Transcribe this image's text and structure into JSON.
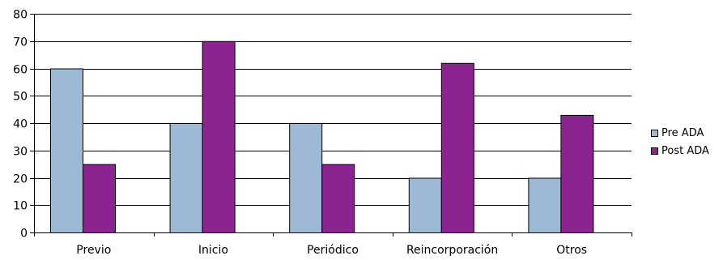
{
  "chart_data": {
    "type": "bar",
    "categories": [
      "Previo",
      "Inicio",
      "Periódico",
      "Reincorporación",
      "Otros"
    ],
    "series": [
      {
        "name": "Pre ADA",
        "values": [
          60,
          40,
          40,
          20,
          20
        ],
        "color": "#9DB9D5"
      },
      {
        "name": "Post ADA",
        "values": [
          25,
          70,
          25,
          62,
          43
        ],
        "color": "#8B2391"
      }
    ],
    "title": "",
    "xlabel": "",
    "ylabel": "",
    "ylim": [
      0,
      80
    ],
    "yticks": [
      0,
      10,
      20,
      30,
      40,
      50,
      60,
      70,
      80
    ],
    "grid": true,
    "legend_position": "right"
  }
}
